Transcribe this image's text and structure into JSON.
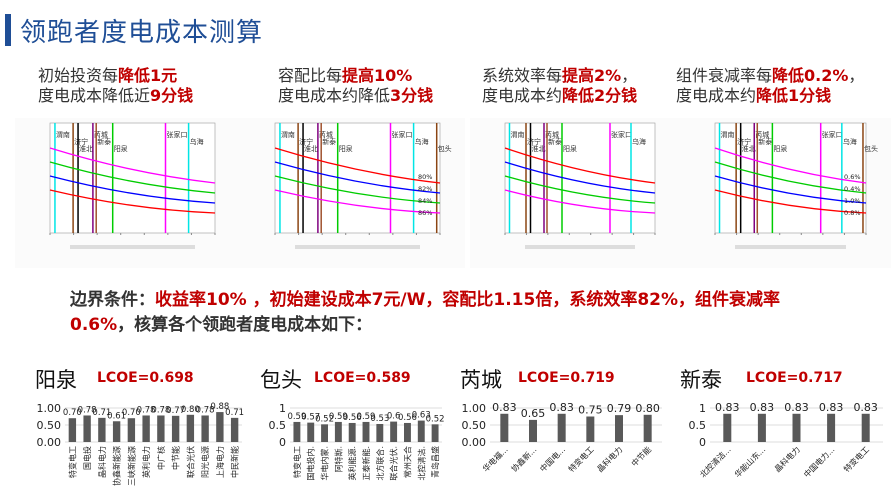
{
  "header": {
    "title": "领跑者度电成本测算"
  },
  "notes": [
    {
      "line1_plain": "初始投资每",
      "line1_red": "降低1元",
      "line2_plain": "度电成本降低近",
      "line2_red": "9分钱"
    },
    {
      "line1_plain": "容配比每",
      "line1_red": "提高10%",
      "line2_plain": "度电成本约降低",
      "line2_red": "3分钱"
    },
    {
      "line1_plain": "系统效率每",
      "line1_red": "提高2%",
      "line1_tail": "，",
      "line2_plain": "度电成本约",
      "line2_red": "降低2分钱"
    },
    {
      "line1_plain": "组件衰减率每",
      "line1_red": "降低0.2%",
      "line1_tail": "，",
      "line2_plain": "度电成本约",
      "line2_red": "降低1分钱"
    }
  ],
  "condition": {
    "p1": "边界条件：",
    "r1": "收益率10% ，初始建设成本7元/W，容配比1.15倍，系统效率82%，组件衰减率0.6%",
    "p2": "，核算各个领跑者度电成本如下："
  },
  "colors": {
    "accent": "#1f4e96",
    "highlight": "#c00000",
    "bar": "#595959"
  },
  "chart_data": [
    {
      "type": "line",
      "cities": [
        "渭南",
        "济宁",
        "淮北",
        "芮城",
        "新泰",
        "阳泉",
        "张家口",
        "乌海"
      ],
      "series_colors": [
        "#ff00ff",
        "#00cc00",
        "#0000ff",
        "#ff0000"
      ]
    },
    {
      "type": "line",
      "cities": [
        "渭南",
        "济宁",
        "淮北",
        "芮城",
        "新泰",
        "阳泉",
        "张家口",
        "乌海",
        "包头"
      ],
      "curve_labels": [
        "80%",
        "82%",
        "84%",
        "86%"
      ],
      "series_colors": [
        "#ff0000",
        "#0000ff",
        "#00cc00",
        "#ff00ff"
      ]
    },
    {
      "type": "line",
      "cities": [
        "渭南",
        "济宁",
        "淮北",
        "芮城",
        "新泰",
        "阳泉",
        "张家口",
        "乌海"
      ],
      "series_colors": [
        "#ff0000",
        "#0000ff",
        "#00cc00",
        "#ff00ff"
      ]
    },
    {
      "type": "line",
      "cities": [
        "渭南",
        "济宁",
        "淮北",
        "芮城",
        "新泰",
        "阳泉",
        "张家口",
        "乌海",
        "包头"
      ],
      "curve_labels": [
        "0.6%",
        "0.4%",
        "1.0%",
        "0.8%"
      ],
      "series_colors": [
        "#ff00ff",
        "#00cc00",
        "#0000ff",
        "#ff0000"
      ]
    },
    {
      "type": "bar",
      "title": "阳泉",
      "lcoe": "LCOE=0.698",
      "categories": [
        "特变电工",
        "国电投",
        "晶科电力",
        "协鑫新能源",
        "三峡新能源",
        "英利电力",
        "中广核",
        "中节能",
        "联合光伏",
        "阳光电源",
        "上海电力",
        "中民新能"
      ],
      "values": [
        0.7,
        0.78,
        0.71,
        0.61,
        0.7,
        0.78,
        0.78,
        0.77,
        0.8,
        0.78,
        0.88,
        0.71
      ],
      "yticks": [
        "0.00",
        "0.50",
        "1.00"
      ],
      "ylim": [
        0,
        1
      ],
      "labels_format": 2
    },
    {
      "type": "bar",
      "title": "包头",
      "lcoe": "LCOE=0.589",
      "categories": [
        "特变电工",
        "国电投内.",
        "华电内蒙.",
        "阿特斯.",
        "英利能源.",
        "正泰新能.",
        "北方联合.",
        "联合光伏.",
        "常州天合",
        "北控清洁.",
        "青岛昌盛"
      ],
      "values": [
        0.59,
        0.57,
        0.52,
        0.59,
        0.56,
        0.59,
        0.53,
        0.6,
        0.56,
        0.63,
        0.52
      ],
      "value_labels": [
        "0.59",
        "0.57",
        "0.52",
        "0.59",
        "0.56",
        "0.59",
        "0.53",
        "0.6",
        "0.56",
        "0.63",
        "0.52"
      ],
      "yticks": [
        "0",
        "0.5",
        "1"
      ],
      "ylim": [
        0,
        1
      ]
    },
    {
      "type": "bar",
      "title": "芮城",
      "lcoe": "LCOE=0.719",
      "categories": [
        "华电福...",
        "协鑫新...",
        "中国电...",
        "特变电工",
        "晶科电力",
        "中节能"
      ],
      "values": [
        0.83,
        0.65,
        0.83,
        0.75,
        0.79,
        0.8
      ],
      "yticks": [
        "0.00",
        "0.50",
        "1.00"
      ],
      "ylim": [
        0,
        1
      ],
      "labels_format": 2
    },
    {
      "type": "bar",
      "title": "新泰",
      "lcoe": "LCOE=0.717",
      "categories": [
        "北控清洁...",
        "华能山东...",
        "晶科电力",
        "中国电力...",
        "特变电工"
      ],
      "values": [
        0.83,
        0.83,
        0.83,
        0.83,
        0.83
      ],
      "yticks": [
        "0",
        "0.5",
        "1"
      ],
      "ylim": [
        0,
        1
      ],
      "labels_format": 2
    }
  ]
}
